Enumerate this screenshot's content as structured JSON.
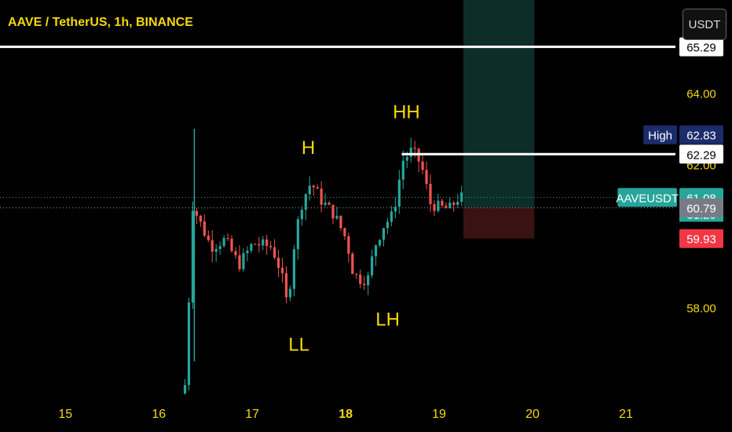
{
  "header": {
    "title": "AAVE / TetherUS, 1h, BINANCE",
    "currency": "USDT"
  },
  "price_axis": {
    "ticks": [
      {
        "value": 64.0,
        "label": "64.00"
      },
      {
        "value": 62.0,
        "label": "62.00"
      },
      {
        "value": 58.0,
        "label": "58.00"
      }
    ]
  },
  "price_tags": [
    {
      "name": "level-tag-top",
      "value": 65.29,
      "label": "65.29",
      "bg": "#ffffff",
      "fg": "#000000"
    },
    {
      "name": "high-tag",
      "value": 62.83,
      "label": "62.83",
      "bg": "#1c2c6b",
      "fg": "#ffffff",
      "caption": "High"
    },
    {
      "name": "level-tag-mid",
      "value": 62.29,
      "label": "62.29",
      "bg": "#ffffff",
      "fg": "#000000"
    },
    {
      "name": "last-price-tag",
      "value": 61.08,
      "label": "61.08",
      "bg": "#26a69a",
      "fg": "#ffffff",
      "caption": "AAVEUSDT"
    },
    {
      "name": "countdown-tag",
      "value": 60.62,
      "label": "31:20",
      "bg": "#26a69a",
      "fg": "#ffffff",
      "text_only": true
    },
    {
      "name": "entry-tag",
      "value": 60.79,
      "label": "60.79",
      "bg": "#787b86",
      "fg": "#ffffff"
    },
    {
      "name": "stop-tag",
      "value": 59.93,
      "label": "59.93",
      "bg": "#f23645",
      "fg": "#ffffff"
    }
  ],
  "time_axis": {
    "labels": [
      {
        "label": "15",
        "bold": false
      },
      {
        "label": "16",
        "bold": false
      },
      {
        "label": "17",
        "bold": false
      },
      {
        "label": "18",
        "bold": true
      },
      {
        "label": "19",
        "bold": false
      },
      {
        "label": "20",
        "bold": false
      },
      {
        "label": "21",
        "bold": false
      }
    ]
  },
  "annotations": [
    {
      "text": "H",
      "day": 17.6,
      "price": 62.3
    },
    {
      "text": "HH",
      "day": 18.65,
      "price": 63.3
    },
    {
      "text": "LL",
      "day": 17.5,
      "price": 56.8
    },
    {
      "text": "LH",
      "day": 18.45,
      "price": 57.5
    }
  ],
  "colors": {
    "up": "#26a69a",
    "down": "#ef5350",
    "text": "#f5d90a",
    "profit_zone": "#0d2d28",
    "loss_zone": "#3a1212",
    "reference_lines": "#ffffff"
  },
  "chart_data": {
    "type": "candlestick",
    "symbol": "AAVEUSDT",
    "title": "AAVE / TetherUS, 1h, BINANCE",
    "interval": "1h",
    "ylim": [
      55.4,
      66.6
    ],
    "xlim": [
      14.3,
      21.53
    ],
    "horizontal_lines": [
      65.29,
      62.29
    ],
    "position": {
      "entry": 60.79,
      "target": 66.6,
      "stop": 59.93,
      "start_day": 19.26,
      "end_day": 20.02
    },
    "last_price": 61.08,
    "high": 62.83,
    "candles_summary": {
      "start_day": 16.28,
      "end_day": 19.25,
      "step_days": 0.0417,
      "anchors": [
        {
          "day": 16.28,
          "price": 55.6
        },
        {
          "day": 16.35,
          "price": 56.0
        },
        {
          "day": 16.38,
          "price": 61.0
        },
        {
          "day": 16.48,
          "price": 60.4
        },
        {
          "day": 16.6,
          "price": 59.7
        },
        {
          "day": 16.75,
          "price": 59.9
        },
        {
          "day": 16.9,
          "price": 59.2
        },
        {
          "day": 17.05,
          "price": 59.8
        },
        {
          "day": 17.25,
          "price": 59.7
        },
        {
          "day": 17.35,
          "price": 59.0
        },
        {
          "day": 17.42,
          "price": 58.0
        },
        {
          "day": 17.5,
          "price": 60.0
        },
        {
          "day": 17.58,
          "price": 61.0
        },
        {
          "day": 17.67,
          "price": 61.5
        },
        {
          "day": 17.78,
          "price": 61.0
        },
        {
          "day": 17.92,
          "price": 60.6
        },
        {
          "day": 18.05,
          "price": 59.9
        },
        {
          "day": 18.12,
          "price": 59.0
        },
        {
          "day": 18.18,
          "price": 58.8
        },
        {
          "day": 18.28,
          "price": 58.8
        },
        {
          "day": 18.35,
          "price": 59.7
        },
        {
          "day": 18.45,
          "price": 60.3
        },
        {
          "day": 18.55,
          "price": 60.6
        },
        {
          "day": 18.65,
          "price": 62.1
        },
        {
          "day": 18.75,
          "price": 62.4
        },
        {
          "day": 18.85,
          "price": 62.0
        },
        {
          "day": 18.95,
          "price": 60.9
        },
        {
          "day": 19.05,
          "price": 60.8
        },
        {
          "day": 19.15,
          "price": 60.75
        },
        {
          "day": 19.25,
          "price": 61.08
        }
      ]
    }
  }
}
